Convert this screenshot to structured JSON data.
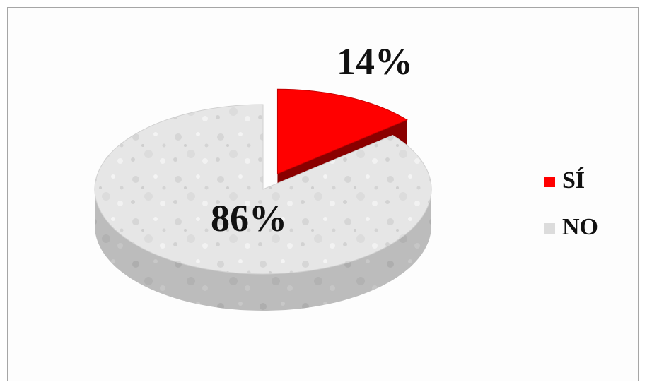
{
  "chart_data": {
    "type": "pie",
    "three_d": true,
    "legend_position": "right",
    "series": [
      {
        "name": "SÍ",
        "value": 14,
        "label": "14%",
        "color": "#ff0000",
        "side_color": "#a00000",
        "exploded": true
      },
      {
        "name": "NO",
        "value": 86,
        "label": "86%",
        "color": "#e4e4e4",
        "side_color": "#bdbdbd",
        "exploded": false
      }
    ]
  }
}
